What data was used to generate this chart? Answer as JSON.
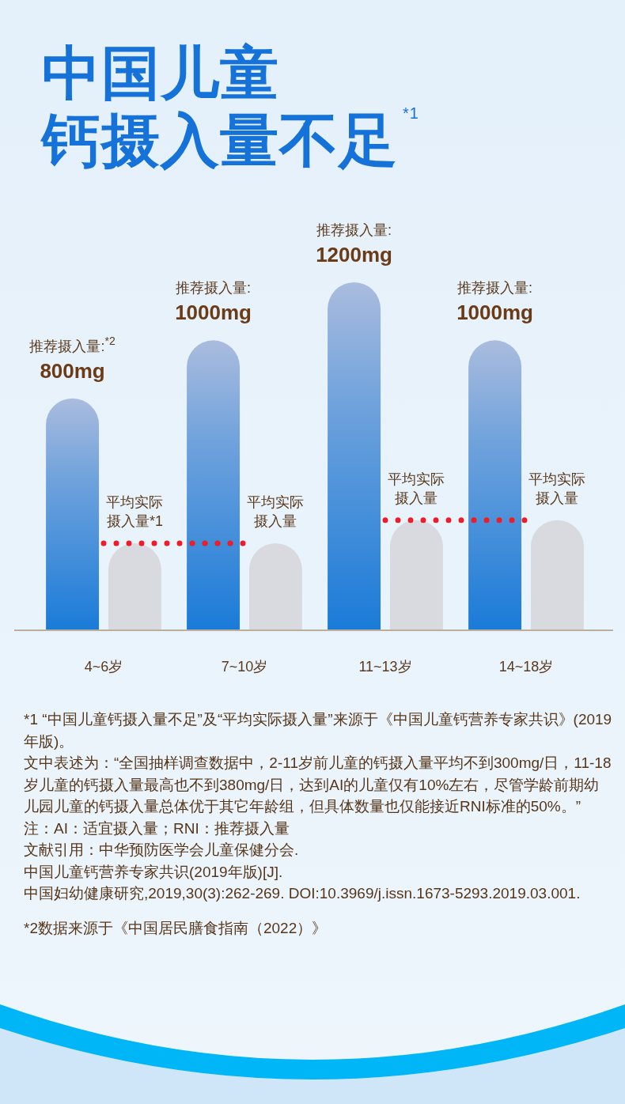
{
  "chart_data": {
    "type": "bar",
    "title": "中国儿童",
    "subtitle": "钙摄入量不足$^{*1}$",
    "categories": [
      "4~6岁",
      "7~10岁",
      "11~13岁",
      "14~18岁"
    ],
    "series": [
      {
        "color": "#1a7bd8",
        "values": [
          800,
          1000,
          1200,
          1000
        ],
        "value_labels": [
          "推荐摄入量:$^{*2}$\n800mg",
          "推荐摄入量:\n1000mg",
          "推荐摄入量:\n1200mg",
          "推荐摄入量:\n1000mg"
        ]
      },
      {
        "color": "#d9dadf",
        "values": [
          300,
          300,
          380,
          380
        ]
      },
      {
        "type": "line",
        "color": "#ee1c25",
        "line_style": "dotted",
        "values": [
          300,
          300,
          null,
          null
        ]
      },
      {
        "type": "line",
        "color": "#ee1c25",
        "line_style": "dotted",
        "values": [
          null,
          null,
          380,
          380
        ]
      }
    ],
    "annotations": [
      {
        "text": "平均实际摄入量*1",
        "x": "4~6岁",
        "y": 300
      },
      {
        "text": "平均实际摄入量",
        "x": "7~10岁",
        "y": 300
      },
      {
        "text": "平均实际摄入量",
        "x": "11~13岁",
        "y": 380
      },
      {
        "text": "平均实际摄入量",
        "x": "14~18岁",
        "y": 380
      },
      "*1 “中国儿童钙摄入量不足”及“平均实际摄入量”来源于《中国儿童钙营养专家共识》(2019年版)。",
      "文中表述为：“全国抽样调查数据中，2-11岁前儿童的钙摄入量平均不到300mg/日，11-18岁儿童的钙摄入量最高也不到380mg/日，达到AI的儿童仅有10%左右，尽管学龄前期幼儿园儿童的钙摄入量总体优于其它年龄组，但具体数量也仅能接近RNI标准的50%。”",
      "注：AI：适宜摄入量；RNI：推荐摄入量",
      "文献引用：中华预防医学会儿童保健分会.",
      "中国儿童钙营养专家共识(2019年版)[J].",
      "中国妇幼健康研究,2019,30(3):262-269. DOI:10.3969/j.issn.1673-5293.2019.03.001.",
      "*2数据来源于《中国居民膳食指南（2022）》"
    ]
  }
}
